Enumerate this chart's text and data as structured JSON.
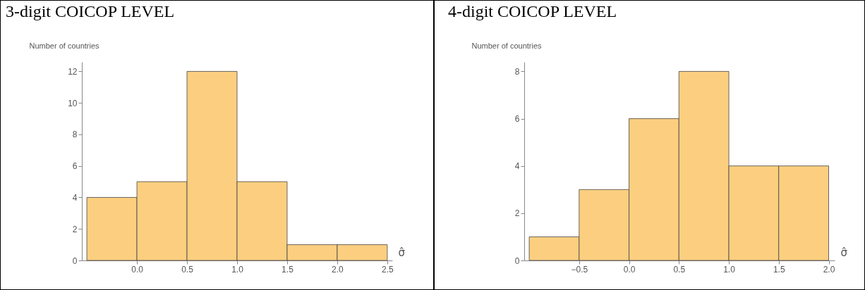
{
  "chart_data": [
    {
      "type": "histogram",
      "title": "3-digit COICOP LEVEL",
      "xlabel": "σ̂",
      "ylabel": "Number of countries",
      "color": "#fccf80",
      "bins": [
        -0.5,
        0,
        0.5,
        1,
        1.5,
        2,
        2.5
      ],
      "values": [
        4,
        5,
        12,
        5,
        1,
        1
      ],
      "xlim": [
        -0.55,
        2.55
      ],
      "ylim": [
        0,
        12.6
      ],
      "xticks": [
        {
          "value": 0,
          "label": "0.0"
        },
        0.5,
        {
          "value": 1,
          "label": "1.0"
        },
        1.5,
        {
          "value": 2,
          "label": "2.0"
        },
        2.5
      ],
      "yticks": [
        0,
        2,
        4,
        6,
        8,
        10,
        12
      ]
    },
    {
      "type": "histogram",
      "title": "4-digit COICOP LEVEL",
      "xlabel": "σ̂",
      "ylabel": "Number of countries",
      "color": "#fccf80",
      "bins": [
        -1,
        -0.5,
        0,
        0.5,
        1,
        1.5,
        2
      ],
      "values": [
        1,
        3,
        6,
        8,
        4,
        4
      ],
      "xlim": [
        -1.05,
        2.06
      ],
      "ylim": [
        0,
        8.4
      ],
      "xticks": [
        {
          "value": -0.5,
          "label": "−0.5"
        },
        {
          "value": 0,
          "label": "0.0"
        },
        0.5,
        {
          "value": 1,
          "label": "1.0"
        },
        1.5,
        {
          "value": 2,
          "label": "2.0"
        }
      ],
      "yticks": [
        0,
        2,
        4,
        6,
        8
      ]
    }
  ]
}
